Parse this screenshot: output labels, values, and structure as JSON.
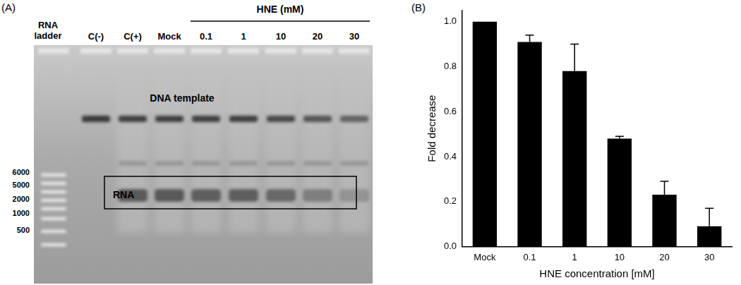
{
  "panel_labels": [
    "(A)",
    "(B)"
  ],
  "gel": {
    "header": "HNE (mM)",
    "lanes": [
      "RNA ladder",
      "C(-)",
      "C(+)",
      "Mock"
    ],
    "hne_lanes": [
      "0.1",
      "1",
      "10",
      "20",
      "30"
    ],
    "ladder_labels": [
      6000,
      5000,
      2000,
      1000,
      500
    ],
    "band_labels": [
      "DNA template",
      "RNA"
    ]
  },
  "chart_data": {
    "type": "bar",
    "categories": [
      "Mock",
      "0.1",
      "1",
      "10",
      "20",
      "30"
    ],
    "values": [
      1.0,
      0.91,
      0.78,
      0.48,
      0.23,
      0.09
    ],
    "errors": [
      0,
      0.03,
      0.12,
      0.01,
      0.06,
      0.08
    ],
    "color": "#000000",
    "x_label": "HNE concentration [mM]",
    "y_label": "Fold decrease",
    "ylim": [
      0,
      1.05
    ],
    "yticks": [
      {
        "value": 0,
        "label": "0.0"
      },
      0.2,
      0.4,
      0.6,
      0.8,
      {
        "value": 1,
        "label": "1.0"
      }
    ],
    "grid": false
  }
}
